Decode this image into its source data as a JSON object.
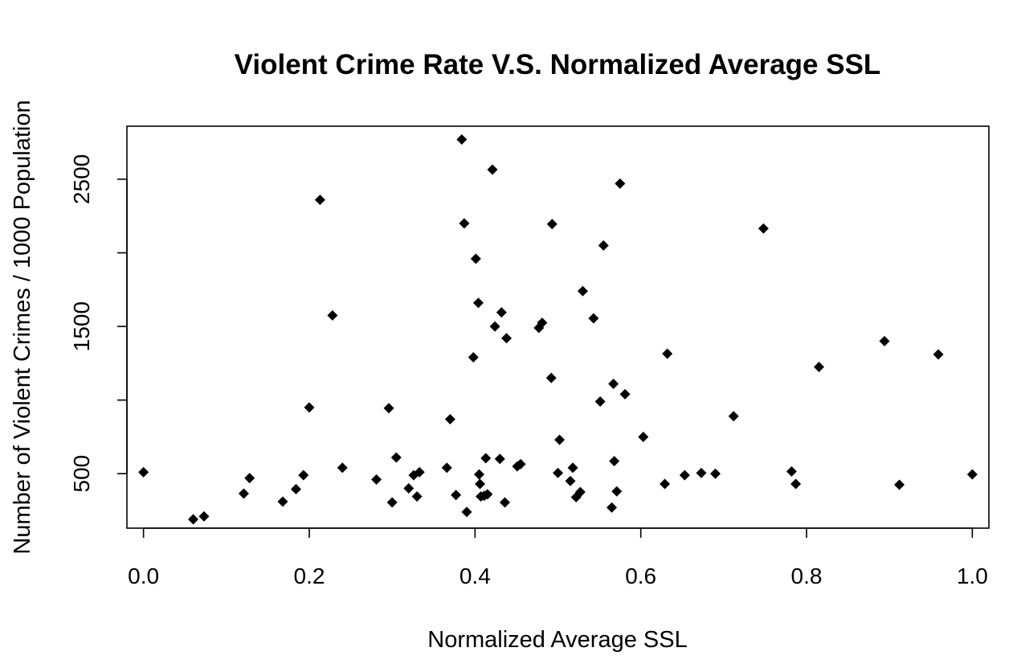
{
  "chart_data": {
    "type": "scatter",
    "title": "Violent Crime Rate V.S. Normalized Average SSL",
    "xlabel": "Normalized Average SSL",
    "ylabel": "Number of Violent Crimes / 1000 Population",
    "xlim": [
      -0.02,
      1.02
    ],
    "ylim": [
      130,
      2860
    ],
    "xticks": [
      "0.0",
      "0.2",
      "0.4",
      "0.6",
      "0.8",
      "1.0"
    ],
    "xtick_values": [
      0,
      0.2,
      0.4,
      0.6,
      0.8,
      1.0
    ],
    "yticks": [
      "500",
      "1500",
      "2500"
    ],
    "ytick_values": [
      500,
      1000,
      1500,
      2000,
      2500
    ],
    "marker": "diamond",
    "marker_color": "#000000",
    "grid": false,
    "points": [
      {
        "x": 0.0,
        "y": 510
      },
      {
        "x": 0.06,
        "y": 190
      },
      {
        "x": 0.073,
        "y": 210
      },
      {
        "x": 0.121,
        "y": 365
      },
      {
        "x": 0.128,
        "y": 470
      },
      {
        "x": 0.168,
        "y": 310
      },
      {
        "x": 0.184,
        "y": 395
      },
      {
        "x": 0.193,
        "y": 490
      },
      {
        "x": 0.2,
        "y": 950
      },
      {
        "x": 0.213,
        "y": 2360
      },
      {
        "x": 0.228,
        "y": 1575
      },
      {
        "x": 0.24,
        "y": 540
      },
      {
        "x": 0.281,
        "y": 460
      },
      {
        "x": 0.296,
        "y": 945
      },
      {
        "x": 0.3,
        "y": 305
      },
      {
        "x": 0.305,
        "y": 610
      },
      {
        "x": 0.32,
        "y": 400
      },
      {
        "x": 0.326,
        "y": 490
      },
      {
        "x": 0.33,
        "y": 345
      },
      {
        "x": 0.333,
        "y": 510
      },
      {
        "x": 0.366,
        "y": 540
      },
      {
        "x": 0.37,
        "y": 870
      },
      {
        "x": 0.377,
        "y": 355
      },
      {
        "x": 0.384,
        "y": 2770
      },
      {
        "x": 0.387,
        "y": 2200
      },
      {
        "x": 0.39,
        "y": 240
      },
      {
        "x": 0.398,
        "y": 1290
      },
      {
        "x": 0.401,
        "y": 1960
      },
      {
        "x": 0.404,
        "y": 1660
      },
      {
        "x": 0.405,
        "y": 495
      },
      {
        "x": 0.406,
        "y": 430
      },
      {
        "x": 0.407,
        "y": 345
      },
      {
        "x": 0.411,
        "y": 350
      },
      {
        "x": 0.413,
        "y": 605
      },
      {
        "x": 0.415,
        "y": 360
      },
      {
        "x": 0.421,
        "y": 2565
      },
      {
        "x": 0.424,
        "y": 1500
      },
      {
        "x": 0.43,
        "y": 600
      },
      {
        "x": 0.432,
        "y": 1595
      },
      {
        "x": 0.436,
        "y": 305
      },
      {
        "x": 0.438,
        "y": 1420
      },
      {
        "x": 0.451,
        "y": 550
      },
      {
        "x": 0.455,
        "y": 565
      },
      {
        "x": 0.477,
        "y": 1490
      },
      {
        "x": 0.481,
        "y": 1525
      },
      {
        "x": 0.492,
        "y": 1150
      },
      {
        "x": 0.493,
        "y": 2195
      },
      {
        "x": 0.5,
        "y": 505
      },
      {
        "x": 0.502,
        "y": 730
      },
      {
        "x": 0.515,
        "y": 450
      },
      {
        "x": 0.518,
        "y": 540
      },
      {
        "x": 0.522,
        "y": 340
      },
      {
        "x": 0.527,
        "y": 375
      },
      {
        "x": 0.53,
        "y": 1740
      },
      {
        "x": 0.543,
        "y": 1555
      },
      {
        "x": 0.551,
        "y": 990
      },
      {
        "x": 0.555,
        "y": 2050
      },
      {
        "x": 0.565,
        "y": 270
      },
      {
        "x": 0.567,
        "y": 1110
      },
      {
        "x": 0.568,
        "y": 585
      },
      {
        "x": 0.571,
        "y": 380
      },
      {
        "x": 0.575,
        "y": 2470
      },
      {
        "x": 0.581,
        "y": 1040
      },
      {
        "x": 0.603,
        "y": 750
      },
      {
        "x": 0.629,
        "y": 430
      },
      {
        "x": 0.632,
        "y": 1315
      },
      {
        "x": 0.653,
        "y": 490
      },
      {
        "x": 0.673,
        "y": 505
      },
      {
        "x": 0.69,
        "y": 500
      },
      {
        "x": 0.712,
        "y": 890
      },
      {
        "x": 0.748,
        "y": 2165
      },
      {
        "x": 0.782,
        "y": 515
      },
      {
        "x": 0.787,
        "y": 430
      },
      {
        "x": 0.815,
        "y": 1225
      },
      {
        "x": 0.894,
        "y": 1400
      },
      {
        "x": 0.912,
        "y": 425
      },
      {
        "x": 0.959,
        "y": 1310
      },
      {
        "x": 1.0,
        "y": 495
      }
    ]
  }
}
